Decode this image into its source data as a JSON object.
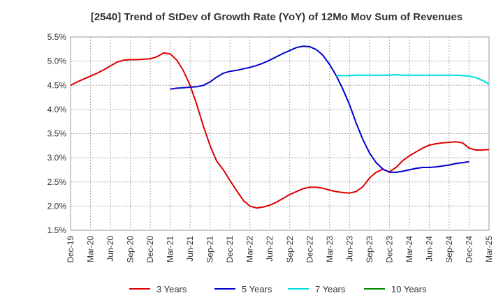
{
  "chart_data": {
    "type": "line",
    "title": "[2540]  Trend of StDev of Growth Rate (YoY) of 12Mo Mov Sum of Revenues",
    "xlabel": "",
    "ylabel": "",
    "ylim": [
      1.5,
      5.5
    ],
    "y_ticks": [
      1.5,
      2.0,
      2.5,
      3.0,
      3.5,
      4.0,
      4.5,
      5.0,
      5.5
    ],
    "y_tick_labels": [
      "1.5%",
      "2.0%",
      "2.5%",
      "3.0%",
      "3.5%",
      "4.0%",
      "4.5%",
      "5.0%",
      "5.5%"
    ],
    "x_tick_labels": [
      "Dec-19",
      "Mar-20",
      "Jun-20",
      "Sep-20",
      "Dec-20",
      "Mar-21",
      "Jun-21",
      "Sep-21",
      "Dec-21",
      "Mar-22",
      "Jun-22",
      "Sep-22",
      "Dec-22",
      "Mar-23",
      "Jun-23",
      "Sep-23",
      "Dec-23",
      "Mar-24",
      "Jun-24",
      "Sep-24",
      "Dec-24",
      "Mar-25"
    ],
    "x_range_months": [
      0,
      63
    ],
    "grid": true,
    "legend_position": "bottom",
    "series": [
      {
        "name": "3 Years",
        "color": "#dd0000",
        "start_month": 0,
        "values": [
          4.5,
          4.57,
          4.63,
          4.69,
          4.75,
          4.82,
          4.9,
          4.98,
          5.02,
          5.03,
          5.03,
          5.04,
          5.05,
          5.09,
          5.17,
          5.15,
          5.02,
          4.8,
          4.5,
          4.1,
          3.65,
          3.25,
          2.93,
          2.75,
          2.53,
          2.32,
          2.12,
          2.0,
          1.96,
          1.98,
          2.02,
          2.08,
          2.16,
          2.24,
          2.3,
          2.36,
          2.39,
          2.39,
          2.37,
          2.33,
          2.3,
          2.28,
          2.27,
          2.3,
          2.4,
          2.58,
          2.7,
          2.76,
          2.71,
          2.8,
          2.94,
          3.04,
          3.12,
          3.2,
          3.26,
          3.29,
          3.31,
          3.32,
          3.33,
          3.31,
          3.2,
          3.16,
          3.16,
          3.17
        ]
      },
      {
        "name": "5 Years",
        "color": "#0000cc",
        "start_month": 15,
        "values": [
          4.42,
          4.44,
          4.45,
          4.46,
          4.47,
          4.5,
          4.57,
          4.67,
          4.75,
          4.79,
          4.81,
          4.84,
          4.87,
          4.91,
          4.96,
          5.02,
          5.09,
          5.16,
          5.22,
          5.28,
          5.31,
          5.3,
          5.24,
          5.12,
          4.93,
          4.7,
          4.42,
          4.1,
          3.72,
          3.38,
          3.1,
          2.9,
          2.77,
          2.7,
          2.7,
          2.72,
          2.75,
          2.78,
          2.8,
          2.8,
          2.81,
          2.83,
          2.85,
          2.88,
          2.9,
          2.92
        ]
      },
      {
        "name": "7 Years",
        "color": "#00dddd",
        "start_month": 40,
        "values": [
          4.7,
          4.7,
          4.7,
          4.71,
          4.71,
          4.71,
          4.71,
          4.71,
          4.71,
          4.72,
          4.71,
          4.71,
          4.71,
          4.71,
          4.71,
          4.71,
          4.71,
          4.71,
          4.71,
          4.7,
          4.69,
          4.66,
          4.6,
          4.53
        ]
      },
      {
        "name": "10 Years",
        "color": "#008800",
        "start_month": 0,
        "values": []
      }
    ]
  }
}
